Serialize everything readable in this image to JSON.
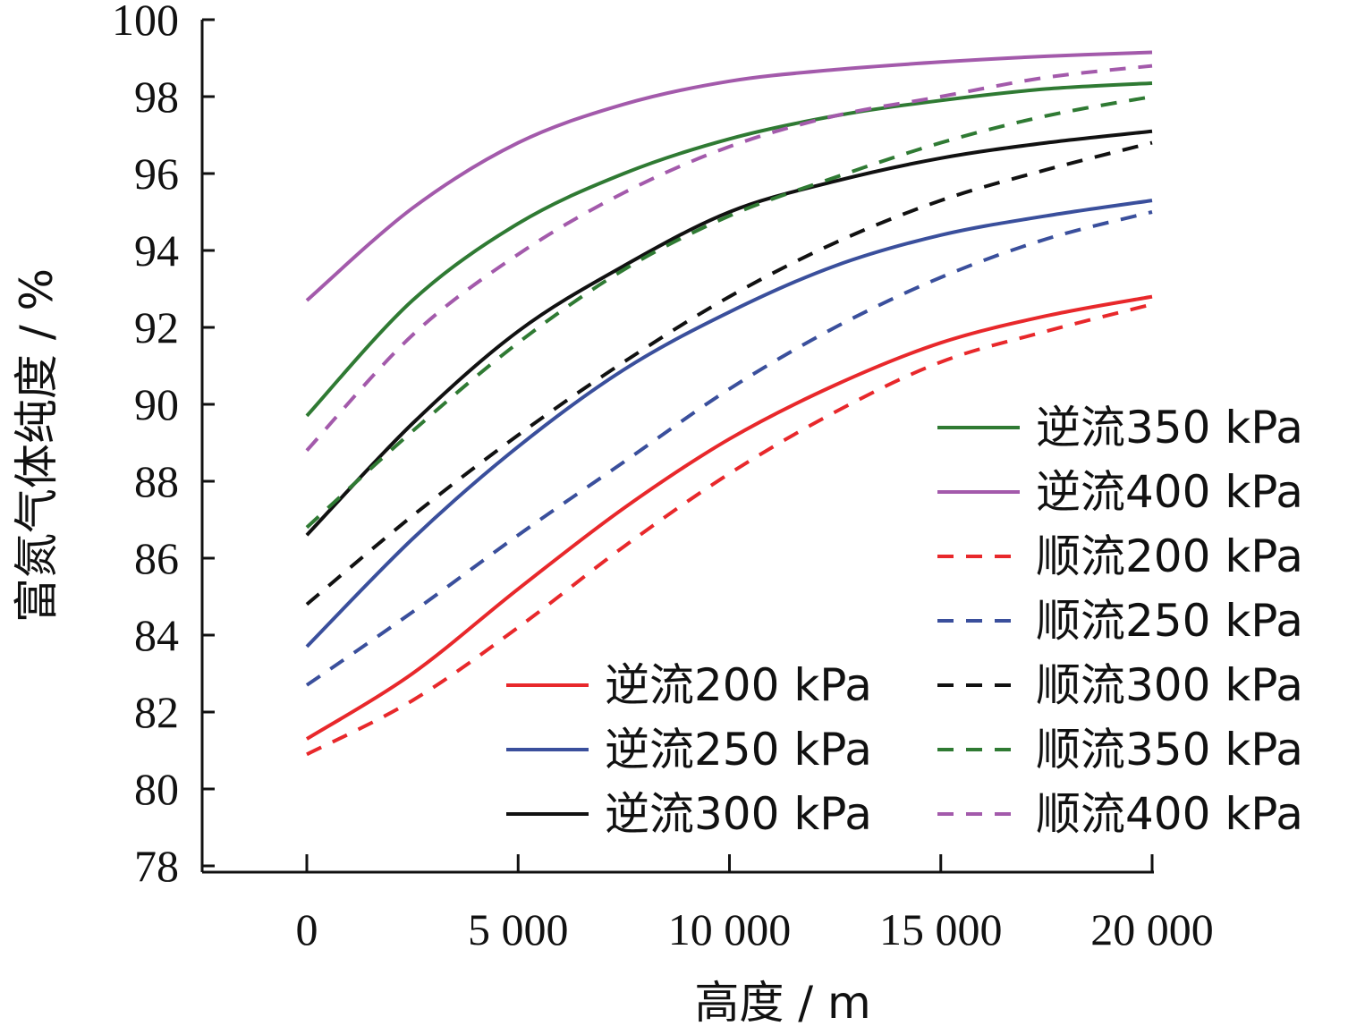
{
  "chart_data": {
    "type": "line",
    "xlabel": "高度 / m",
    "ylabel": "富氮气体纯度 / %",
    "xlim": [
      0,
      20000
    ],
    "ylim": [
      78,
      100
    ],
    "x_ticks": [
      0,
      5000,
      10000,
      15000,
      20000
    ],
    "x_tick_labels": [
      "0",
      "5 000",
      "10 000",
      "15 000",
      "20 000"
    ],
    "y_ticks": [
      78,
      80,
      82,
      84,
      86,
      88,
      90,
      92,
      94,
      96,
      98,
      100
    ],
    "y_tick_labels": [
      "78",
      "80",
      "82",
      "84",
      "86",
      "88",
      "90",
      "92",
      "94",
      "96",
      "98",
      "100"
    ],
    "grid": false,
    "x": [
      0,
      2500,
      5000,
      7500,
      10000,
      12500,
      15000,
      17500,
      20000
    ],
    "series": [
      {
        "name": "逆流200 kPa",
        "color": "#e8282b",
        "dash": "solid",
        "values": [
          81.3,
          83.0,
          85.2,
          87.3,
          89.1,
          90.5,
          91.6,
          92.3,
          92.8
        ]
      },
      {
        "name": "逆流250 kPa",
        "color": "#3a4f9c",
        "dash": "solid",
        "values": [
          83.7,
          86.5,
          88.9,
          90.9,
          92.4,
          93.6,
          94.4,
          94.9,
          95.3
        ]
      },
      {
        "name": "逆流300 kPa",
        "color": "#111111",
        "dash": "solid",
        "values": [
          86.6,
          89.5,
          91.9,
          93.6,
          95.0,
          95.8,
          96.4,
          96.8,
          97.1
        ]
      },
      {
        "name": "逆流350 kPa",
        "color": "#2f7a33",
        "dash": "solid",
        "values": [
          89.7,
          92.7,
          94.7,
          96.0,
          96.9,
          97.5,
          97.9,
          98.2,
          98.35
        ]
      },
      {
        "name": "逆流400 kPa",
        "color": "#a35aab",
        "dash": "solid",
        "values": [
          92.7,
          95.1,
          96.8,
          97.8,
          98.4,
          98.7,
          98.9,
          99.05,
          99.15
        ]
      },
      {
        "name": "顺流200 kPa",
        "color": "#e8282b",
        "dash": "dashed",
        "values": [
          80.9,
          82.3,
          84.2,
          86.3,
          88.2,
          89.8,
          91.1,
          91.9,
          92.6
        ]
      },
      {
        "name": "顺流250 kPa",
        "color": "#3a4f9c",
        "dash": "dashed",
        "values": [
          82.7,
          84.6,
          86.6,
          88.5,
          90.4,
          92.0,
          93.3,
          94.3,
          95.0
        ]
      },
      {
        "name": "顺流300 kPa",
        "color": "#111111",
        "dash": "dashed",
        "values": [
          84.8,
          87.1,
          89.2,
          91.1,
          92.8,
          94.2,
          95.3,
          96.1,
          96.8
        ]
      },
      {
        "name": "顺流350 kPa",
        "color": "#2f7a33",
        "dash": "dashed",
        "values": [
          86.8,
          89.3,
          91.6,
          93.5,
          94.9,
          95.9,
          96.8,
          97.5,
          98.0
        ]
      },
      {
        "name": "顺流400 kPa",
        "color": "#a35aab",
        "dash": "dashed",
        "values": [
          88.8,
          91.8,
          93.9,
          95.5,
          96.7,
          97.5,
          98.0,
          98.5,
          98.8
        ]
      }
    ],
    "legend_placement": "bottom-right, two columns"
  }
}
